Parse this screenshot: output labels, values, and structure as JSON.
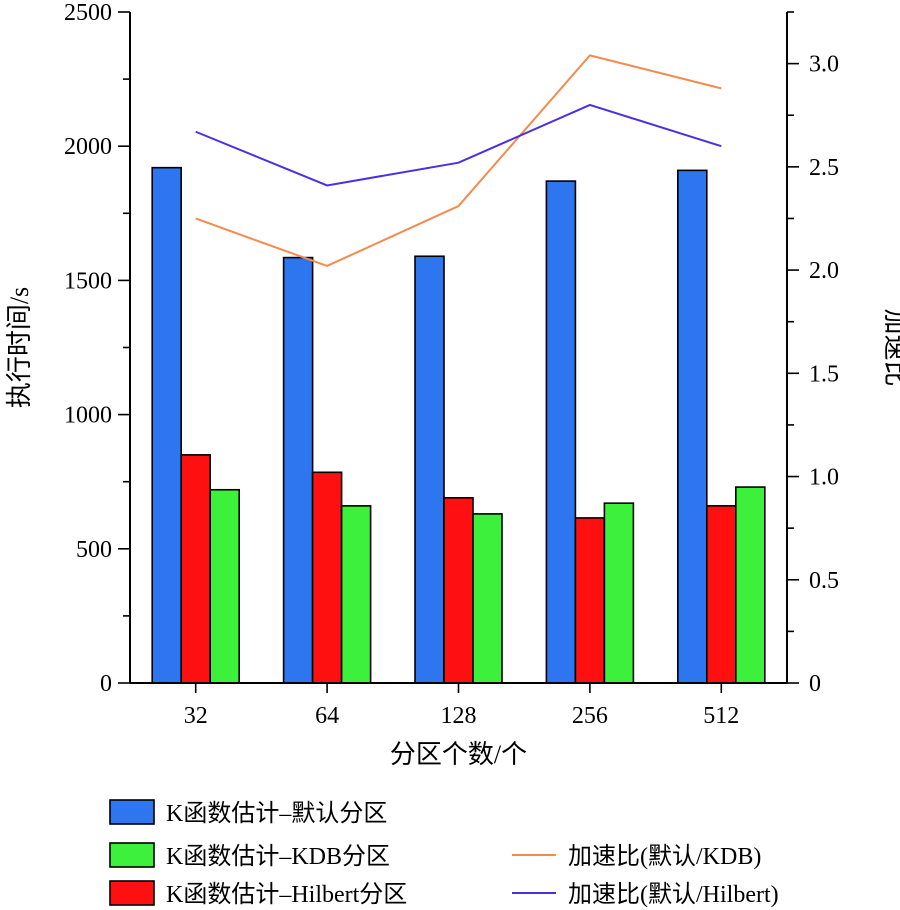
{
  "chart_data": {
    "type": "bar",
    "xlabel": "分区个数/个",
    "ylabel": "执行时间/s",
    "y2label": "加速比",
    "categories": [
      "32",
      "64",
      "128",
      "256",
      "512"
    ],
    "ylim": [
      0,
      2500
    ],
    "y2lim": [
      0,
      3.25
    ],
    "yticks": [
      "0",
      "500",
      "1000",
      "1500",
      "2000",
      "2500"
    ],
    "y2ticks": [
      "0",
      "0.5",
      "1.0",
      "1.5",
      "2.0",
      "2.5",
      "3.0"
    ],
    "series": [
      {
        "name": "K函数估计–默认分区",
        "kind": "bar",
        "color": "#2e75f0",
        "values": [
          1920,
          1585,
          1590,
          1870,
          1910
        ]
      },
      {
        "name": "K函数估计–Hilbert分区",
        "kind": "bar",
        "color": "#ff1010",
        "values": [
          850,
          785,
          690,
          615,
          660
        ]
      },
      {
        "name": "K函数估计–KDB分区",
        "kind": "bar",
        "color": "#3cf03c",
        "values": [
          720,
          660,
          630,
          670,
          730
        ]
      }
    ],
    "lines": [
      {
        "name": "加速比(默认/KDB)",
        "kind": "line",
        "color": "#f58a4e",
        "values": [
          2.25,
          2.02,
          2.31,
          3.04,
          2.88
        ]
      },
      {
        "name": "加速比(默认/Hilbert)",
        "kind": "line",
        "color": "#4b2fe0",
        "values": [
          2.67,
          2.41,
          2.52,
          2.8,
          2.6
        ]
      }
    ],
    "legend": {
      "placement": "bottom",
      "left": [
        "K函数估计–默认分区",
        "K函数估计–KDB分区",
        "K函数估计–Hilbert分区"
      ],
      "right": [
        "加速比(默认/KDB)",
        "加速比(默认/Hilbert)"
      ]
    }
  }
}
